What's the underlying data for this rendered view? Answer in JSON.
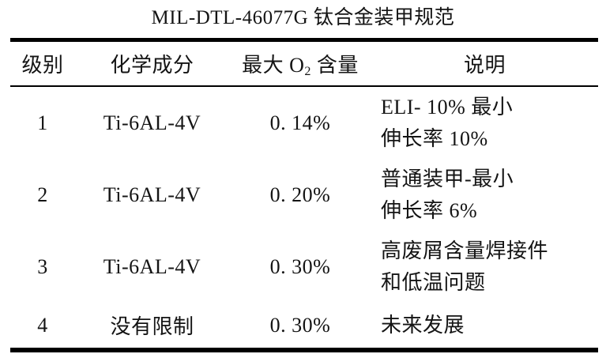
{
  "title": "MIL-DTL-46077G 钛合金装甲规范",
  "table": {
    "headers": {
      "level": "级别",
      "composition": "化学成分",
      "o2_pre": "最大 O",
      "o2_sub": "2",
      "o2_post": " 含量",
      "description": "说明"
    },
    "rows": [
      {
        "level": "1",
        "composition": "Ti-6AL-4V",
        "o2": "0. 14%",
        "desc": [
          "ELI- 10% 最小",
          "伸长率 10%"
        ]
      },
      {
        "level": "2",
        "composition": "Ti-6AL-4V",
        "o2": "0. 20%",
        "desc": [
          "普通装甲-最小",
          "伸长率 6%"
        ]
      },
      {
        "level": "3",
        "composition": "Ti-6AL-4V",
        "o2": "0. 30%",
        "desc": [
          "高废屑含量焊接件",
          "和低温问题"
        ]
      },
      {
        "level": "4",
        "composition": "没有限制",
        "o2": "0. 30%",
        "desc": [
          "未来发展"
        ]
      }
    ]
  },
  "colors": {
    "text": "#141414",
    "rule": "#000000",
    "background": "#ffffff"
  }
}
